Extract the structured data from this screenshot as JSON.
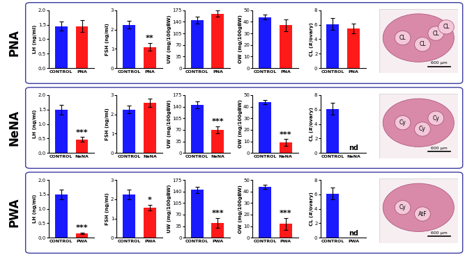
{
  "chart_data": [
    {
      "type": "bar",
      "ylabel": "LH (ng/ml)",
      "categories": [
        "CONTROL",
        "PNA"
      ],
      "values": [
        1.45,
        1.45
      ],
      "errors": [
        0.15,
        0.2
      ],
      "colors": [
        "#1a1aff",
        "#ff1a1a"
      ],
      "ylim": [
        0,
        2.0
      ],
      "yticks": [
        {
          "value": 0,
          "label": "0.0"
        },
        0.5,
        {
          "value": 1,
          "label": "1.0"
        },
        1.5,
        {
          "value": 2,
          "label": "2.0"
        }
      ]
    },
    {
      "type": "bar",
      "ylabel": "FSH (ng/ml)",
      "categories": [
        "CONTROL",
        "PNA"
      ],
      "values": [
        2.25,
        1.1
      ],
      "errors": [
        0.2,
        0.2
      ],
      "colors": [
        "#1a1aff",
        "#ff1a1a"
      ],
      "ylim": [
        0,
        3
      ],
      "yticks": [
        0,
        1,
        2,
        3
      ],
      "annotations": [
        {
          "category": "PNA",
          "text": "**"
        }
      ]
    },
    {
      "type": "bar",
      "ylabel": "UW (mg/100gBW)",
      "categories": [
        "CONTROL",
        "PNA"
      ],
      "values": [
        145,
        165
      ],
      "errors": [
        10,
        10
      ],
      "colors": [
        "#1a1aff",
        "#ff1a1a"
      ],
      "ylim": [
        0,
        175
      ],
      "yticks": [
        0,
        35,
        70,
        105,
        140,
        175
      ]
    },
    {
      "type": "bar",
      "ylabel": "OW (mg/100gBW)",
      "categories": [
        "CONTROL",
        "PNA"
      ],
      "values": [
        44,
        37
      ],
      "errors": [
        2,
        5
      ],
      "colors": [
        "#1a1aff",
        "#ff1a1a"
      ],
      "ylim": [
        0,
        50
      ],
      "yticks": [
        0,
        10,
        20,
        30,
        40,
        50
      ]
    },
    {
      "type": "bar",
      "ylabel": "CL (#/ovary)",
      "categories": [
        "CONTROL",
        "PNA"
      ],
      "values": [
        6.1,
        5.5
      ],
      "errors": [
        0.8,
        0.7
      ],
      "colors": [
        "#1a1aff",
        "#ff1a1a"
      ],
      "ylim": [
        0,
        8
      ],
      "yticks": [
        0,
        2,
        4,
        6,
        8
      ]
    },
    {
      "type": "bar",
      "ylabel": "LH (ng/ml)",
      "categories": [
        "CONTROL",
        "NeNA"
      ],
      "values": [
        1.5,
        0.47
      ],
      "errors": [
        0.17,
        0.08
      ],
      "colors": [
        "#1a1aff",
        "#ff1a1a"
      ],
      "ylim": [
        0,
        2.0
      ],
      "yticks": [
        {
          "value": 0,
          "label": "0.0"
        },
        0.5,
        {
          "value": 1,
          "label": "1.0"
        },
        1.5,
        {
          "value": 2,
          "label": "2.0"
        }
      ],
      "annotations": [
        {
          "category": "NeNA",
          "text": "***"
        }
      ]
    },
    {
      "type": "bar",
      "ylabel": "FSH (ng/ml)",
      "categories": [
        "CONTROL",
        "NeNA"
      ],
      "values": [
        2.25,
        2.6
      ],
      "errors": [
        0.2,
        0.2
      ],
      "colors": [
        "#1a1aff",
        "#ff1a1a"
      ],
      "ylim": [
        0,
        3
      ],
      "yticks": [
        0,
        1,
        2,
        3
      ]
    },
    {
      "type": "bar",
      "ylabel": "UW (mg/100gBW)",
      "categories": [
        "CONTROL",
        "NeNA"
      ],
      "values": [
        145,
        70
      ],
      "errors": [
        10,
        10
      ],
      "colors": [
        "#1a1aff",
        "#ff1a1a"
      ],
      "ylim": [
        0,
        175
      ],
      "yticks": [
        0,
        35,
        70,
        105,
        140,
        175
      ],
      "annotations": [
        {
          "category": "NeNA",
          "text": "***"
        }
      ]
    },
    {
      "type": "bar",
      "ylabel": "OW (mg/100gBW)",
      "categories": [
        "CONTROL",
        "NeNA"
      ],
      "values": [
        44,
        9
      ],
      "errors": [
        2,
        3
      ],
      "colors": [
        "#1a1aff",
        "#ff1a1a"
      ],
      "ylim": [
        0,
        50
      ],
      "yticks": [
        0,
        10,
        20,
        30,
        40,
        50
      ],
      "annotations": [
        {
          "category": "NeNA",
          "text": "***"
        }
      ]
    },
    {
      "type": "bar",
      "ylabel": "CL (#/ovary)",
      "categories": [
        "CONTROL",
        "NeNA"
      ],
      "values": [
        6.1,
        null
      ],
      "errors": [
        0.8,
        null
      ],
      "colors": [
        "#1a1aff",
        "#ff1a1a"
      ],
      "ylim": [
        0,
        8
      ],
      "yticks": [
        0,
        2,
        4,
        6,
        8
      ],
      "annotations": [
        {
          "category": "NeNA",
          "text": "nd"
        }
      ]
    },
    {
      "type": "bar",
      "ylabel": "LH (ng/ml)",
      "categories": [
        "CONTROL",
        "PWA"
      ],
      "values": [
        1.5,
        0.15
      ],
      "errors": [
        0.17,
        0.03
      ],
      "colors": [
        "#1a1aff",
        "#ff1a1a"
      ],
      "ylim": [
        0,
        2.0
      ],
      "yticks": [
        {
          "value": 0,
          "label": "0.0"
        },
        0.5,
        {
          "value": 1,
          "label": "1.0"
        },
        1.5,
        {
          "value": 2,
          "label": "2.0"
        }
      ],
      "annotations": [
        {
          "category": "PWA",
          "text": "***"
        }
      ]
    },
    {
      "type": "bar",
      "ylabel": "FSH (ng/ml)",
      "categories": [
        "CONTROL",
        "PWA"
      ],
      "values": [
        2.25,
        1.55
      ],
      "errors": [
        0.25,
        0.15
      ],
      "colors": [
        "#1a1aff",
        "#ff1a1a"
      ],
      "ylim": [
        0,
        3
      ],
      "yticks": [
        0,
        1,
        2,
        3
      ],
      "annotations": [
        {
          "category": "PWA",
          "text": "*"
        }
      ]
    },
    {
      "type": "bar",
      "ylabel": "UW (mg/100gBW)",
      "categories": [
        "CONTROL",
        "PWA"
      ],
      "values": [
        145,
        45
      ],
      "errors": [
        10,
        15
      ],
      "colors": [
        "#1a1aff",
        "#ff1a1a"
      ],
      "ylim": [
        0,
        175
      ],
      "yticks": [
        0,
        35,
        70,
        105,
        140,
        175
      ],
      "annotations": [
        {
          "category": "PWA",
          "text": "***"
        }
      ]
    },
    {
      "type": "bar",
      "ylabel": "OW (mg/100gBW)",
      "categories": [
        "CONTROL",
        "PWA"
      ],
      "values": [
        44,
        12
      ],
      "errors": [
        2,
        5
      ],
      "colors": [
        "#1a1aff",
        "#ff1a1a"
      ],
      "ylim": [
        0,
        50
      ],
      "yticks": [
        0,
        10,
        20,
        30,
        40,
        50
      ],
      "annotations": [
        {
          "category": "PWA",
          "text": "***"
        }
      ]
    },
    {
      "type": "bar",
      "ylabel": "CL (#/ovary)",
      "categories": [
        "CONTROL",
        "PWA"
      ],
      "values": [
        6.1,
        null
      ],
      "errors": [
        0.8,
        null
      ],
      "colors": [
        "#1a1aff",
        "#ff1a1a"
      ],
      "ylim": [
        0,
        8
      ],
      "yticks": [
        0,
        2,
        4,
        6,
        8
      ],
      "annotations": [
        {
          "category": "PWA",
          "text": "nd"
        }
      ]
    }
  ],
  "row_labels": [
    "PNA",
    "NeNA",
    "PWA"
  ],
  "micrographs": [
    {
      "labels": [
        "CL",
        "CL",
        "CL",
        "CL"
      ],
      "scale_bar": "600 µm"
    },
    {
      "labels": [
        "Cy",
        "Cy",
        "Cy"
      ],
      "scale_bar": "600 µm"
    },
    {
      "labels": [
        "Cy",
        "AtF"
      ],
      "scale_bar": "600 µm"
    }
  ]
}
